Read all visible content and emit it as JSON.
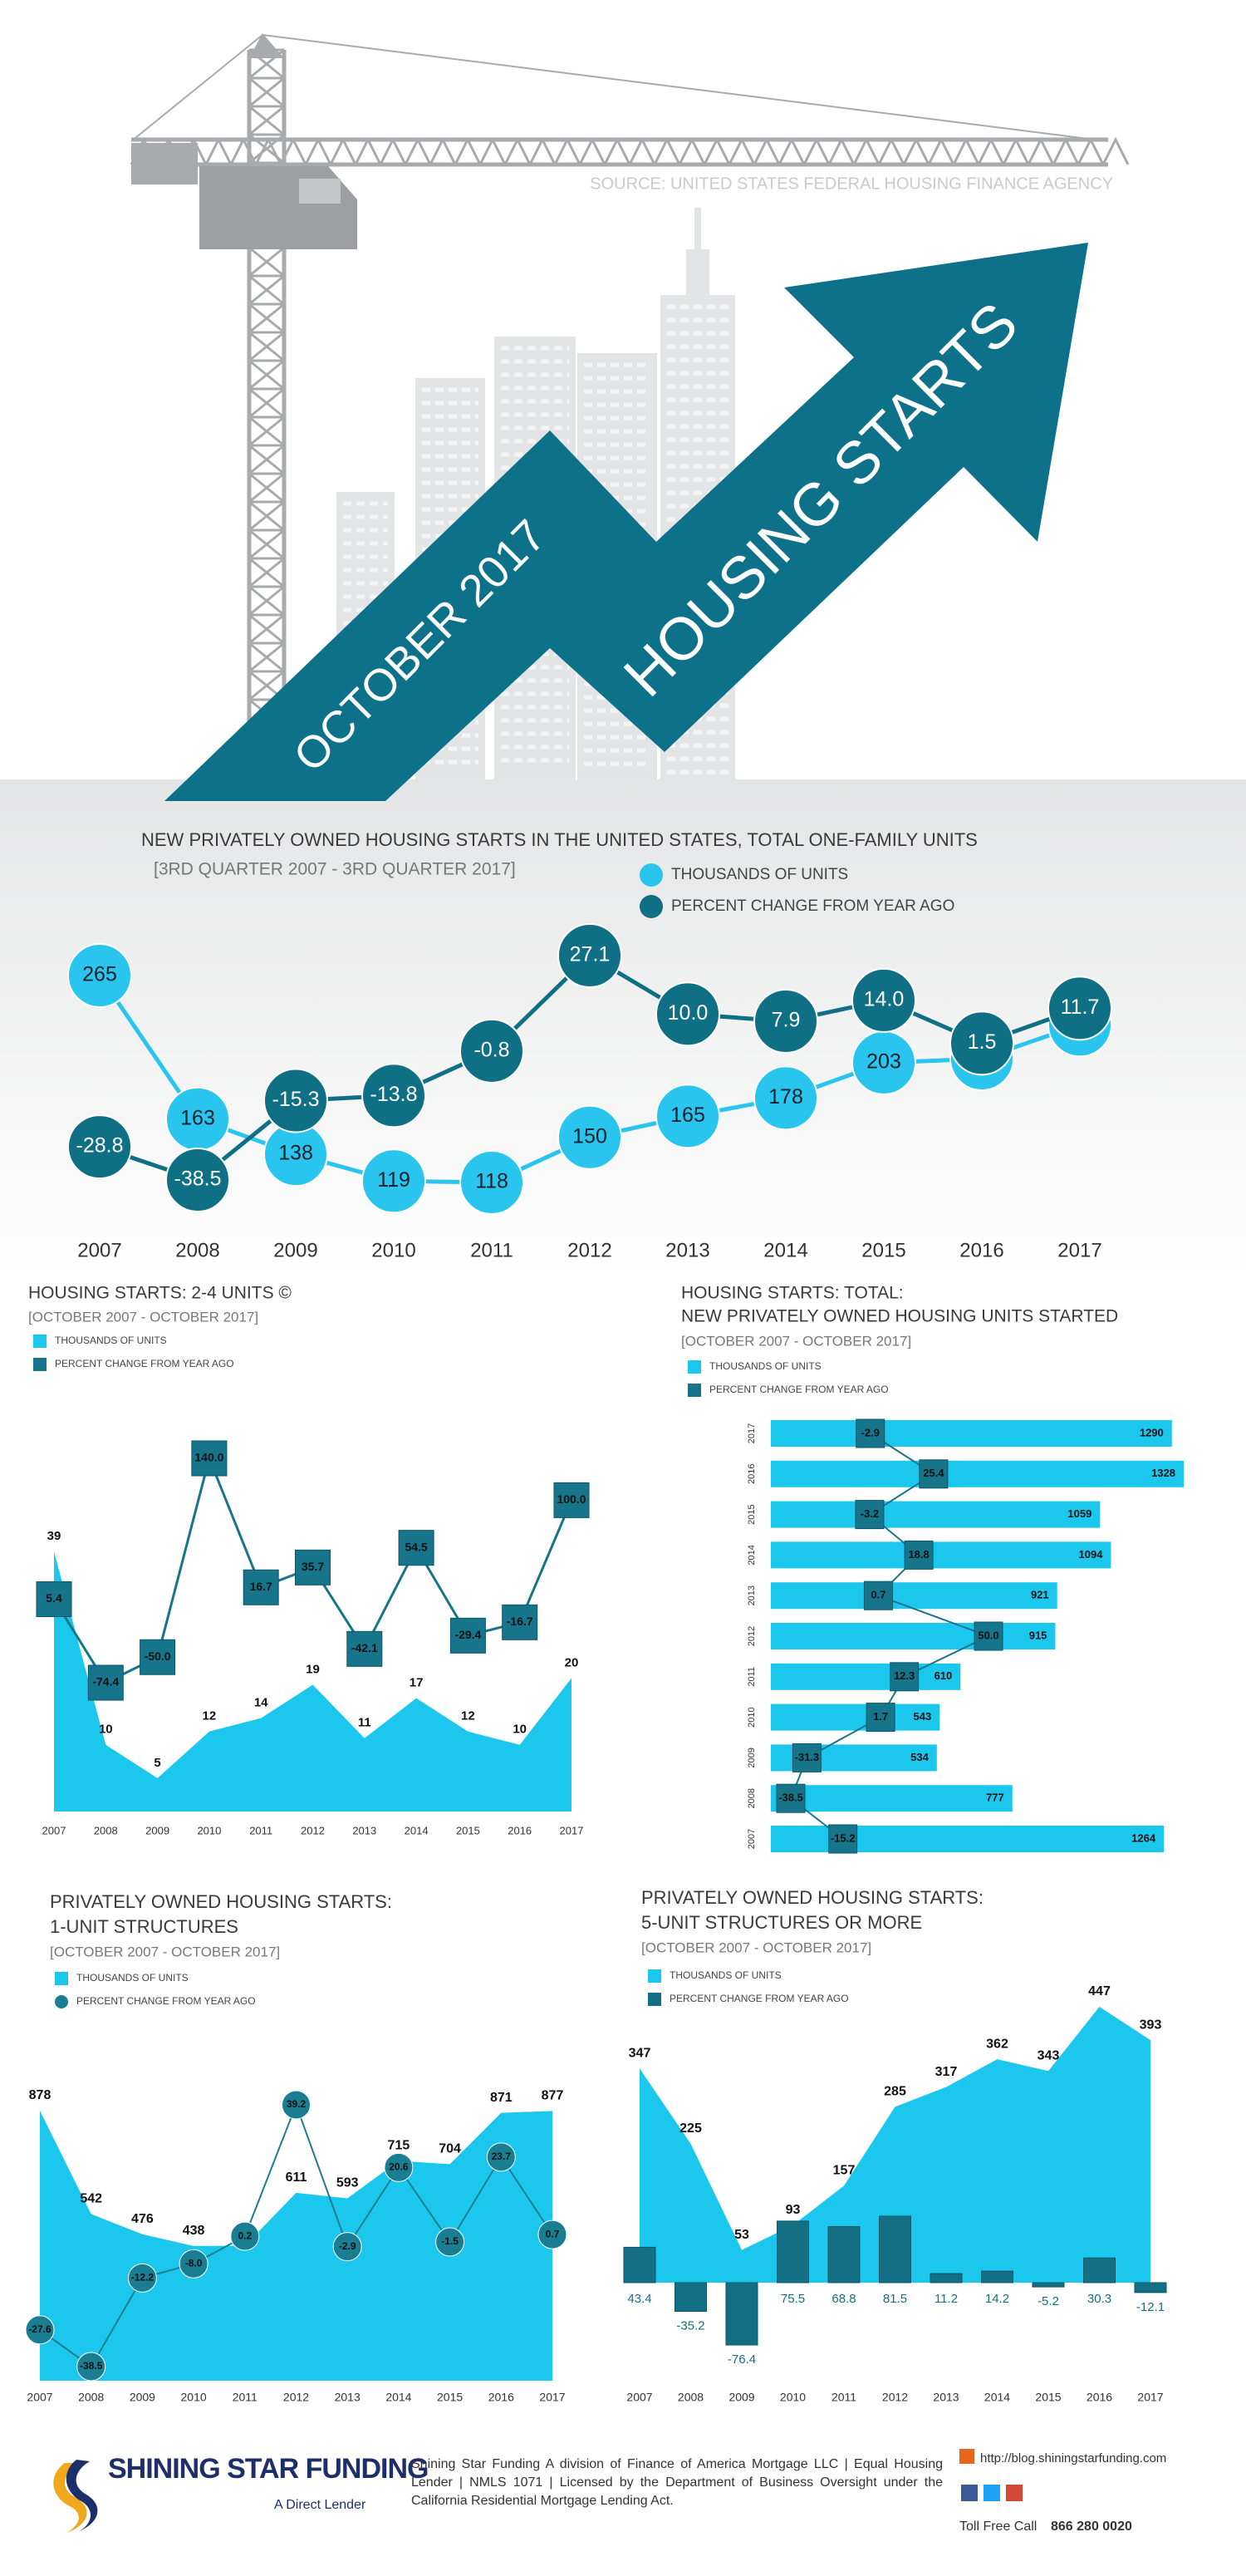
{
  "header": {
    "source": "SOURCE: UNITED STATES FEDERAL HOUSING FINANCE AGENCY",
    "subtitle": "OCTOBER 2017",
    "title": "HOUSING STARTS"
  },
  "chart_data": [
    {
      "type": "line",
      "title": "NEW PRIVATELY OWNED HOUSING STARTS IN THE UNITED STATES, TOTAL ONE-FAMILY UNITS",
      "subtitle": "[3RD QUARTER 2007 - 3RD QUARTER 2017]",
      "categories": [
        "2007",
        "2008",
        "2009",
        "2010",
        "2011",
        "2012",
        "2013",
        "2014",
        "2015",
        "2016",
        "2017"
      ],
      "series": [
        {
          "name": "THOUSANDS OF UNITS",
          "type": "line",
          "marker": "circle",
          "color": "#29c5ee",
          "label_color": "#13202a",
          "values": [
            265,
            163,
            138,
            119,
            118,
            150,
            165,
            178,
            203,
            206,
            230
          ]
        },
        {
          "name": "PERCENT CHANGE FROM YEAR AGO",
          "type": "line",
          "marker": "circle",
          "color": "#0f6f85",
          "label_color": "#ffffff",
          "values": [
            -28.8,
            -38.5,
            -15.3,
            -13.8,
            -0.8,
            27.1,
            10.0,
            7.9,
            14.0,
            1.5,
            11.7
          ],
          "value_labels": [
            "-28.8",
            "-38.5",
            "-15.3",
            "-13.8",
            "-0.8",
            "27.1",
            "10.0",
            "7.9",
            "14.0",
            "1.5",
            "11.7"
          ]
        }
      ]
    },
    {
      "type": "area",
      "title": "HOUSING STARTS: 2-4 UNITS ©",
      "subtitle": "[OCTOBER 2007 - OCTOBER 2017]",
      "categories": [
        "2007",
        "2008",
        "2009",
        "2010",
        "2011",
        "2012",
        "2013",
        "2014",
        "2015",
        "2016",
        "2017"
      ],
      "series": [
        {
          "name": "THOUSANDS OF UNITS",
          "type": "area",
          "color": "#1cc7ee",
          "values": [
            39,
            10,
            5,
            12,
            14,
            19,
            11,
            17,
            12,
            10,
            20
          ]
        },
        {
          "name": "PERCENT CHANGE FROM YEAR AGO",
          "type": "line",
          "marker": "square",
          "color": "#17758b",
          "label_color": "#111111",
          "values": [
            5.4,
            -74.4,
            -50.0,
            140.0,
            16.7,
            35.7,
            -42.1,
            54.5,
            -29.4,
            -16.7,
            100.0
          ],
          "value_labels": [
            "5.4",
            "-74.4",
            "-50.0",
            "140.0",
            "16.7",
            "35.7",
            "-42.1",
            "54.5",
            "-29.4",
            "-16.7",
            "100.0"
          ]
        }
      ]
    },
    {
      "type": "bar",
      "horizontal": true,
      "title": [
        "HOUSING STARTS: TOTAL:",
        "NEW PRIVATELY OWNED HOUSING UNITS STARTED"
      ],
      "subtitle": "[OCTOBER 2007 - OCTOBER 2017]",
      "categories": [
        "2017",
        "2016",
        "2015",
        "2014",
        "2013",
        "2012",
        "2011",
        "2010",
        "2009",
        "2008",
        "2007"
      ],
      "series": [
        {
          "name": "THOUSANDS OF UNITS",
          "type": "bar",
          "color": "#1cc7ee",
          "values": [
            1290,
            1328,
            1059,
            1094,
            921,
            915,
            610,
            543,
            534,
            777,
            1264
          ]
        },
        {
          "name": "PERCENT CHANGE FROM YEAR AGO",
          "type": "line",
          "marker": "square",
          "color": "#17758b",
          "label_color": "#111111",
          "values": [
            -2.9,
            25.4,
            -3.2,
            18.8,
            0.7,
            50.0,
            12.3,
            1.7,
            -31.3,
            -38.5,
            -15.2
          ],
          "value_labels": [
            "-2.9",
            "25.4",
            "-3.2",
            "18.8",
            "0.7",
            "50.0",
            "12.3",
            "1.7",
            "-31.3",
            "-38.5",
            "-15.2"
          ]
        }
      ]
    },
    {
      "type": "area",
      "title": [
        "PRIVATELY OWNED HOUSING STARTS:",
        "1-UNIT STRUCTURES"
      ],
      "subtitle": "[OCTOBER 2007 - OCTOBER 2017]",
      "categories": [
        "2007",
        "2008",
        "2009",
        "2010",
        "2011",
        "2012",
        "2013",
        "2014",
        "2015",
        "2016",
        "2017"
      ],
      "series": [
        {
          "name": "THOUSANDS OF UNITS",
          "type": "area",
          "color": "#1cc7ee",
          "values": [
            878,
            542,
            476,
            438,
            439,
            611,
            593,
            715,
            704,
            871,
            877
          ]
        },
        {
          "name": "PERCENT CHANGE FROM YEAR AGO",
          "type": "line",
          "marker": "circle",
          "color": "#1a7d92",
          "label_color": "#111111",
          "values": [
            -27.6,
            -38.5,
            -12.2,
            -8.0,
            0.2,
            39.2,
            -2.9,
            20.6,
            -1.5,
            23.7,
            0.7
          ],
          "value_labels": [
            "-27.6",
            "-38.5",
            "-12.2",
            "-8.0",
            "0.2",
            "39.2",
            "-2.9",
            "20.6",
            "-1.5",
            "23.7",
            "0.7"
          ]
        }
      ]
    },
    {
      "type": "area",
      "title": [
        "PRIVATELY OWNED HOUSING STARTS:",
        "5-UNIT STRUCTURES OR MORE"
      ],
      "subtitle": "[OCTOBER 2007 - OCTOBER 2017]",
      "categories": [
        "2007",
        "2008",
        "2009",
        "2010",
        "2011",
        "2012",
        "2013",
        "2014",
        "2015",
        "2016",
        "2017"
      ],
      "series": [
        {
          "name": "THOUSANDS OF UNITS",
          "type": "area",
          "color": "#1cc7ee",
          "values": [
            347,
            225,
            53,
            93,
            157,
            285,
            317,
            362,
            343,
            447,
            393
          ]
        },
        {
          "name": "PERCENT CHANGE FROM YEAR AGO",
          "type": "bar",
          "color": "#146f85",
          "label_color": "#146f85",
          "values": [
            43.4,
            -35.2,
            -76.4,
            75.5,
            68.8,
            81.5,
            11.2,
            14.2,
            -5.2,
            30.3,
            -12.1
          ]
        }
      ]
    }
  ],
  "footer": {
    "company": "SHINING STAR FUNDING",
    "tagline": "A Direct Lender",
    "disclaimer": "Shining Star Funding A division of Finance of America Mortgage LLC | Equal Housing Lender | NMLS 1071 | Licensed by the Department of Business Oversight under the California Residential Mortgage Lending Act.",
    "url": "http://blog.shiningstarfunding.com",
    "phone_label": "Toll Free Call",
    "phone": "866 280 0020"
  }
}
